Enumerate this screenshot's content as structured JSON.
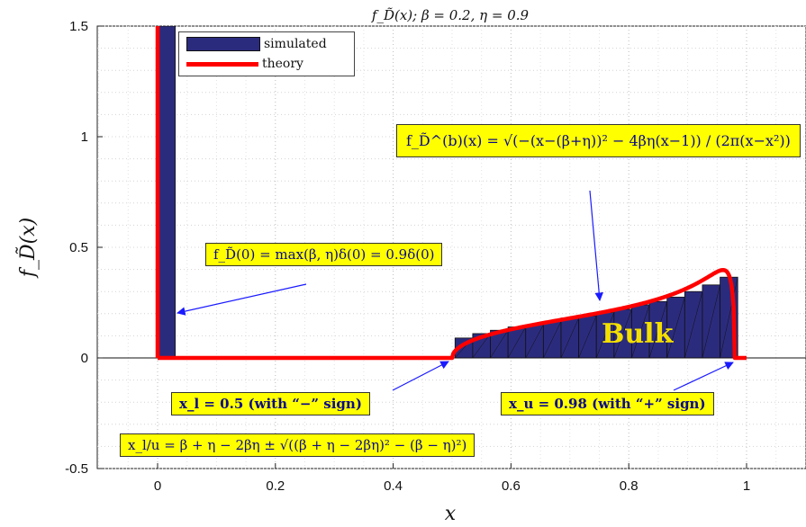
{
  "chart_data": {
    "type": "bar",
    "title": "f_D̃(x); β = 0.2, η = 0.9",
    "xlabel": "x",
    "ylabel": "f_D̃(x)",
    "xlim": [
      -0.1,
      1.1
    ],
    "ylim": [
      -0.5,
      1.5
    ],
    "xticks": [
      "0",
      "0.2",
      "0.4",
      "0.6",
      "0.8",
      "1"
    ],
    "yticks": [
      "-0.5",
      "0",
      "0.5",
      "1",
      "1.5"
    ],
    "grid": true,
    "legend_placement": "top-left",
    "series": [
      {
        "name": "simulated",
        "kind": "histogram",
        "color": "#2b2b7e",
        "bin_width": 0.03,
        "x": [
          0.015,
          0.52,
          0.55,
          0.58,
          0.61,
          0.64,
          0.67,
          0.7,
          0.73,
          0.76,
          0.79,
          0.82,
          0.85,
          0.88,
          0.91,
          0.94,
          0.97
        ],
        "y": [
          1.5,
          0.09,
          0.11,
          0.125,
          0.14,
          0.15,
          0.165,
          0.18,
          0.19,
          0.205,
          0.22,
          0.24,
          0.255,
          0.275,
          0.3,
          0.33,
          0.365
        ]
      },
      {
        "name": "theory",
        "kind": "line",
        "color": "#ff0000",
        "beta": 0.2,
        "eta": 0.9,
        "x_l": 0.5,
        "x_u": 0.98,
        "spike_at_zero": 0.9
      }
    ],
    "annotations": {
      "spike": "f_D̃(0) = max(β, η)δ(0) = 0.9δ(0)",
      "density": "f_D̃^(b)(x) = √(−(x−(β+η))² − 4βη(x−1)) / (2π(x−x²))",
      "bulk": "Bulk",
      "xl": "x_l = 0.5 (with “−” sign)",
      "xu": "x_u = 0.98 (with “+” sign)",
      "xlu": "x_l/u = β + η − 2βη ± √((β + η − 2βη)² − (β − η)²)"
    }
  }
}
